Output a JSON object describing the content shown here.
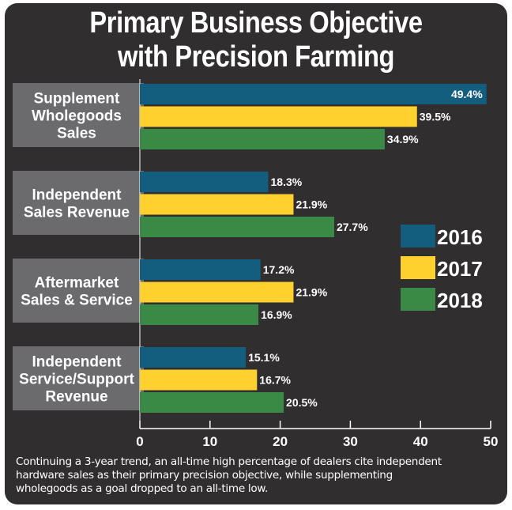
{
  "chart_data": {
    "type": "bar",
    "orientation": "horizontal",
    "title": "Primary Business Objective with Precision Farming",
    "title_lines": [
      "Primary Business Objective",
      "with Precision Farming"
    ],
    "categories": [
      {
        "lines": [
          "Supplement",
          "Wholegoods",
          "Sales"
        ]
      },
      {
        "lines": [
          "Independent",
          "Sales Revenue"
        ]
      },
      {
        "lines": [
          "Aftermarket",
          "Sales & Service"
        ]
      },
      {
        "lines": [
          "Independent",
          "Service/Support",
          "Revenue"
        ]
      }
    ],
    "category_names": [
      "Supplement Wholegoods Sales",
      "Independent Sales Revenue",
      "Aftermarket Sales & Service",
      "Independent Service/Support Revenue"
    ],
    "series": [
      {
        "name": "2016",
        "color": "#135d7e",
        "values": [
          49.4,
          18.3,
          17.2,
          15.1
        ]
      },
      {
        "name": "2017",
        "color": "#fed12e",
        "values": [
          39.5,
          21.9,
          21.9,
          16.7
        ]
      },
      {
        "name": "2018",
        "color": "#3a8a45",
        "values": [
          34.9,
          27.7,
          16.9,
          20.5
        ]
      }
    ],
    "value_suffix": "%",
    "xlabel": "",
    "ylabel": "",
    "xlim": [
      0,
      50
    ],
    "xticks": [
      0,
      10,
      20,
      30,
      40,
      50
    ],
    "grid": false,
    "legend": {
      "placement": "right",
      "entries": [
        "2016",
        "2017",
        "2018"
      ]
    }
  },
  "caption": "Continuing a 3-year trend, an all-time high percentage of dealers cite independent hardware sales as their primary precision objective, while supplementing wholegoods as a goal dropped to an all-time low.",
  "caption_lines": [
    "Continuing a 3-year trend, an all-time high percentage of dealers cite independent",
    "hardware sales as their primary precision objective, while supplementing",
    "wholegoods as a goal dropped to an all-time low."
  ],
  "colors": {
    "background": "#312e30",
    "category_box": "#6b6a6d",
    "text": "#ffffff"
  }
}
